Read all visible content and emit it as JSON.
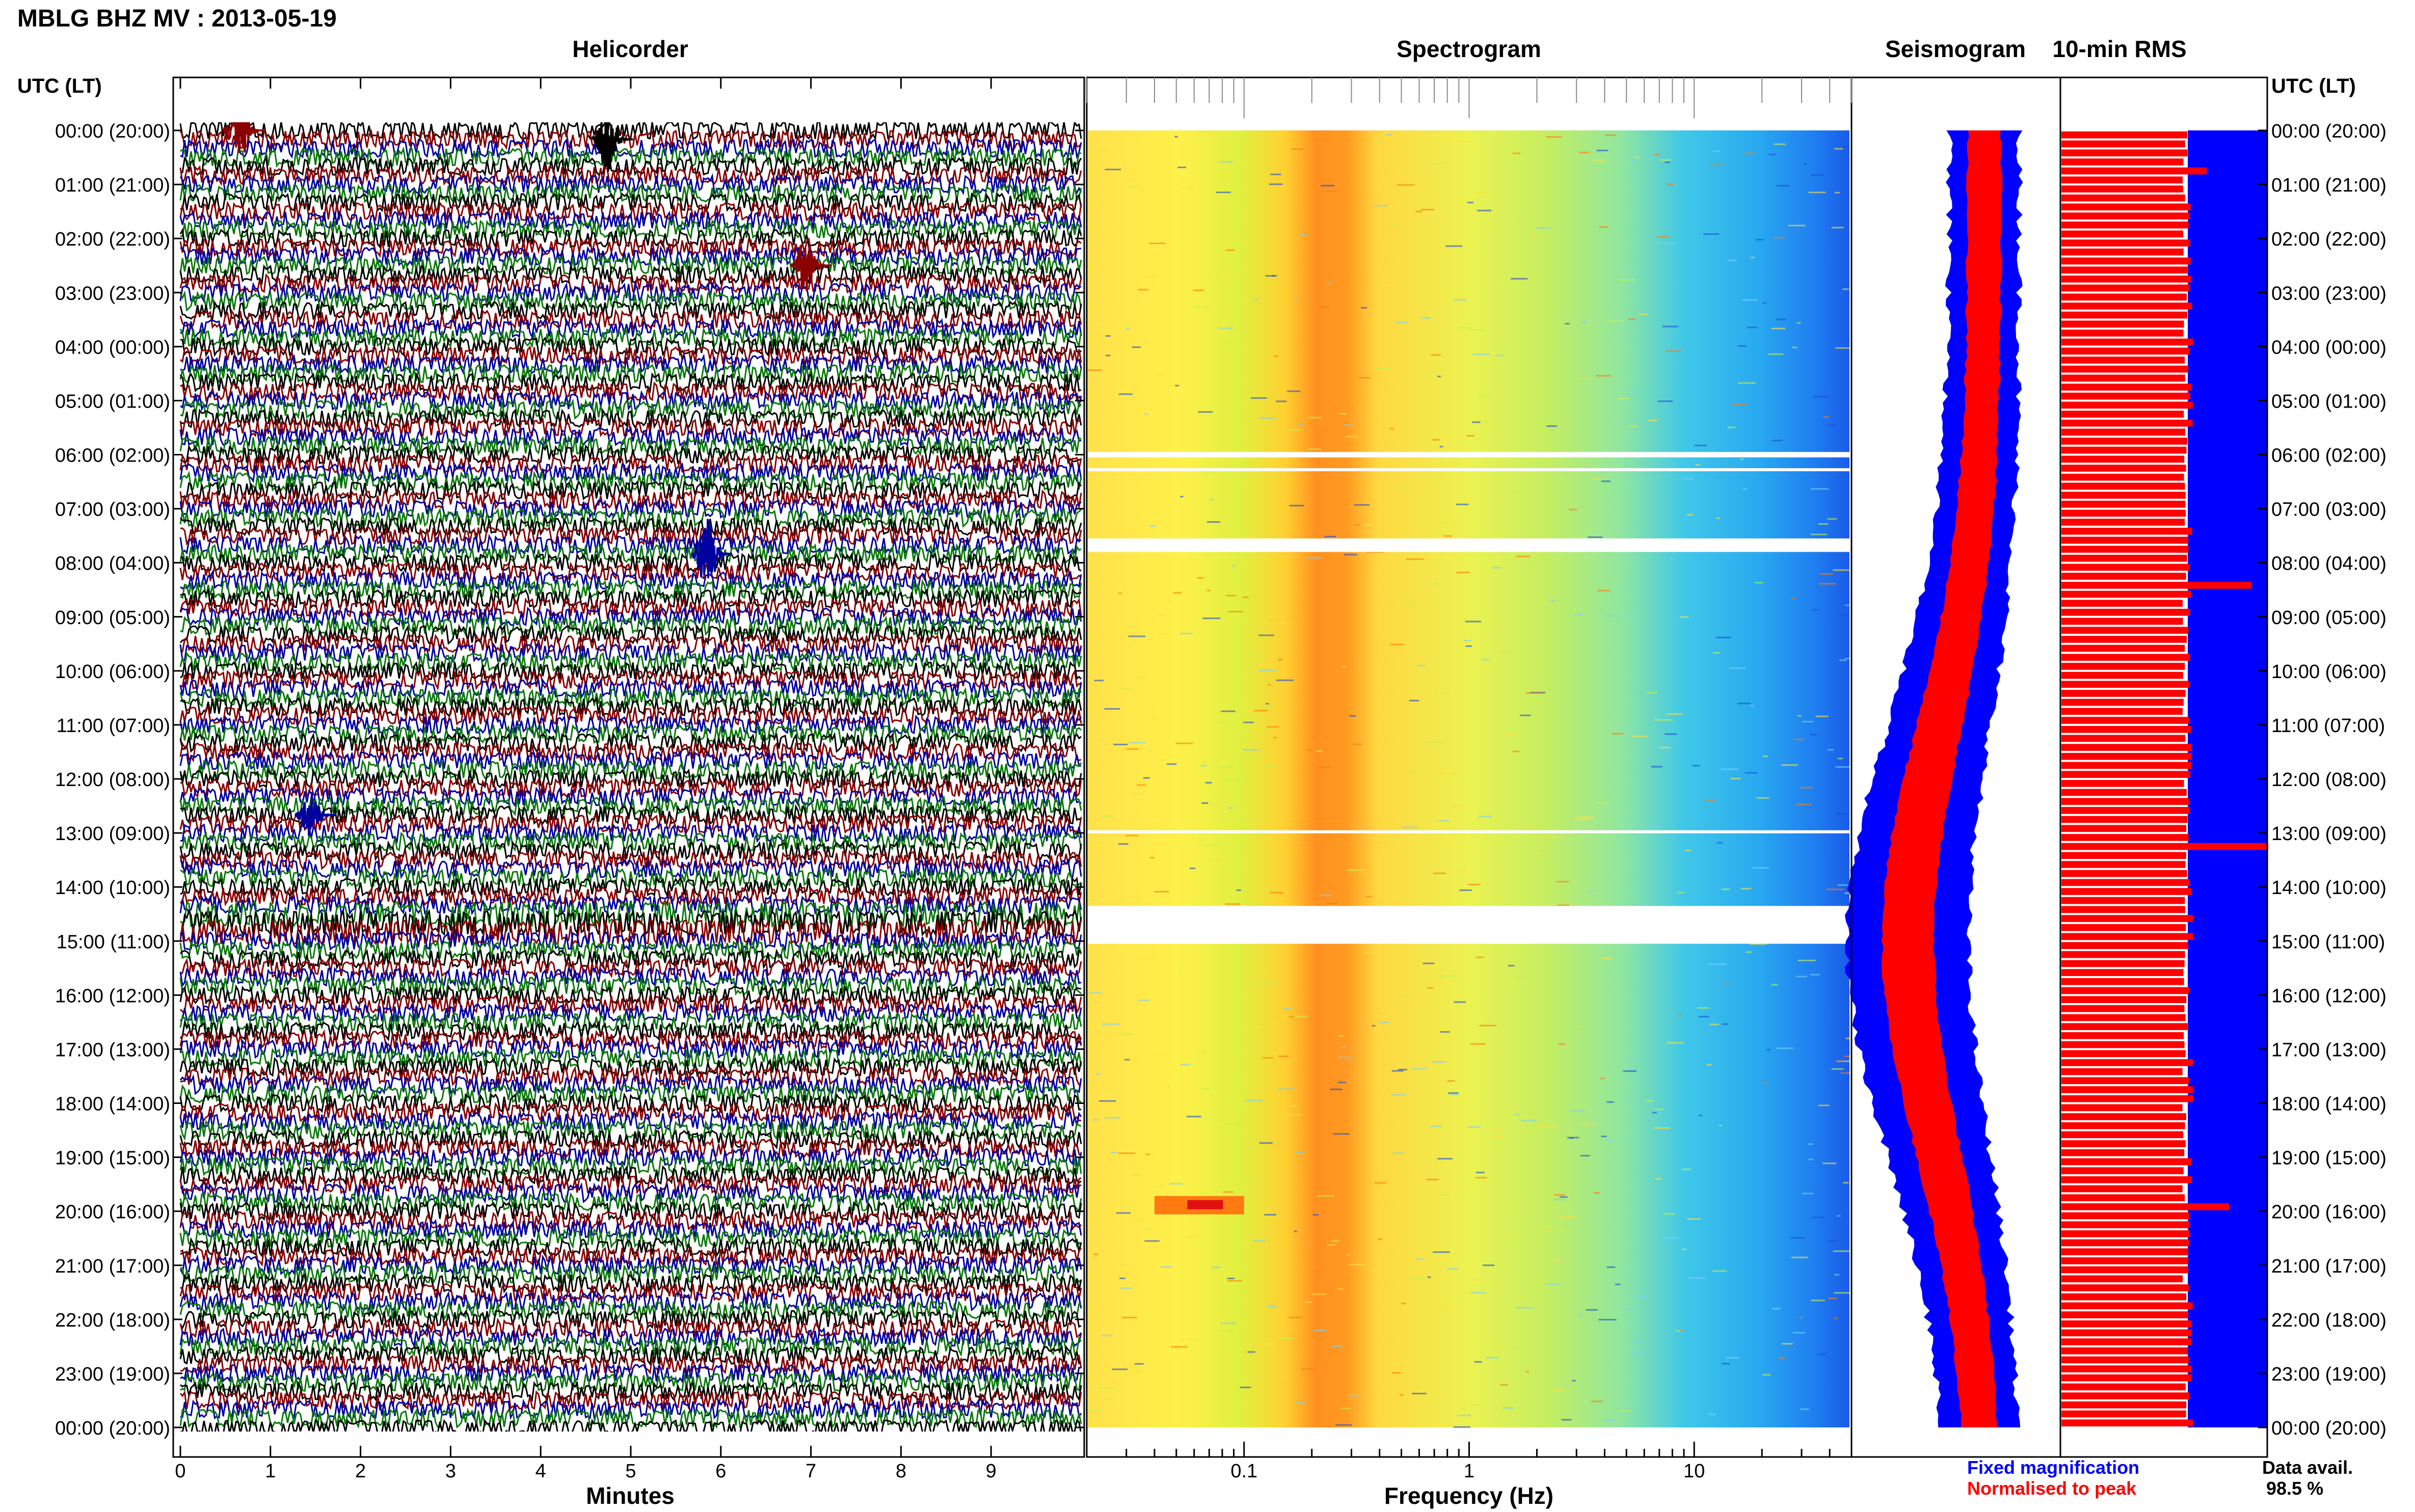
{
  "title": "MBLG BHZ MV : 2013-05-19",
  "panels": {
    "helicorder": "Helicorder",
    "spectrogram": "Spectrogram",
    "seismogram": "Seismogram",
    "rms": "10-min RMS"
  },
  "time_axis_title": "UTC (LT)",
  "time_labels": [
    "00:00 (20:00)",
    "01:00 (21:00)",
    "02:00 (22:00)",
    "03:00 (23:00)",
    "04:00 (00:00)",
    "05:00 (01:00)",
    "06:00 (02:00)",
    "07:00 (03:00)",
    "08:00 (04:00)",
    "09:00 (05:00)",
    "10:00 (06:00)",
    "11:00 (07:00)",
    "12:00 (08:00)",
    "13:00 (09:00)",
    "14:00 (10:00)",
    "15:00 (11:00)",
    "16:00 (12:00)",
    "17:00 (13:00)",
    "18:00 (14:00)",
    "19:00 (15:00)",
    "20:00 (16:00)",
    "21:00 (17:00)",
    "22:00 (18:00)",
    "23:00 (19:00)",
    "00:00 (20:00)"
  ],
  "legend": {
    "fixed": "Fixed magnification",
    "normalised": "Normalised to peak",
    "data_avail_label": "Data avail.",
    "data_avail_value": "98.5 %"
  },
  "colors": {
    "helicorder_traces": [
      "#000000",
      "#8b0000",
      "#0000a0",
      "#0a7a0a"
    ],
    "fixed": "#0000ff",
    "normalised": "#ff0000"
  },
  "chart_data": [
    {
      "type": "line",
      "title": "Helicorder",
      "xlabel": "Minutes",
      "x_ticks": [
        "0",
        "1",
        "2",
        "3",
        "4",
        "5",
        "6",
        "7",
        "8",
        "9"
      ],
      "xlim": [
        0,
        10
      ],
      "ylim_hours": [
        0,
        24
      ],
      "rows": 144,
      "row_minutes": 10,
      "events": [
        {
          "hour": 0.0,
          "minute": 0.7,
          "amp": 2.5,
          "color": "#8b0000"
        },
        {
          "hour": 0.2,
          "minute": 4.8,
          "amp": 2.2,
          "color": "#000000"
        },
        {
          "hour": 2.5,
          "minute": 7.0,
          "amp": 1.8,
          "color": "#8b0000"
        },
        {
          "hour": 7.8,
          "minute": 5.9,
          "amp": 2.6,
          "color": "#0000a0"
        },
        {
          "hour": 12.6,
          "minute": 1.5,
          "amp": 1.6,
          "color": "#0000a0"
        }
      ],
      "gaps_hours": [
        [
          14.5,
          15.0
        ]
      ]
    },
    {
      "type": "heatmap",
      "title": "Spectrogram",
      "xlabel": "Frequency (Hz)",
      "x_scale": "log",
      "xlim": [
        0.02,
        50
      ],
      "x_ticks": [
        "0.1",
        "1",
        "10"
      ],
      "ylim_hours": [
        0,
        24
      ],
      "peak_band_hz": [
        0.18,
        0.35
      ],
      "gaps_hours": [
        [
          14.35,
          15.05
        ],
        [
          5.95,
          6.05
        ],
        [
          6.25,
          6.3
        ],
        [
          7.55,
          7.8
        ],
        [
          12.95,
          13.0
        ]
      ],
      "event": {
        "hour": 19.85,
        "hz": [
          0.04,
          0.1
        ]
      }
    },
    {
      "type": "area",
      "title": "Seismogram",
      "series": [
        {
          "name": "Fixed magnification",
          "color": "#0000ff"
        },
        {
          "name": "Normalised to peak",
          "color": "#ff0000"
        }
      ]
    },
    {
      "type": "bar",
      "title": "10-min RMS",
      "bars": 144,
      "typical_fraction": 0.68,
      "spikes": [
        {
          "hour": 0.67,
          "value": 0.78
        },
        {
          "hour": 8.4,
          "value": 1.02
        },
        {
          "hour": 13.1,
          "value": 1.15
        },
        {
          "hour": 19.85,
          "value": 0.9
        }
      ]
    }
  ]
}
